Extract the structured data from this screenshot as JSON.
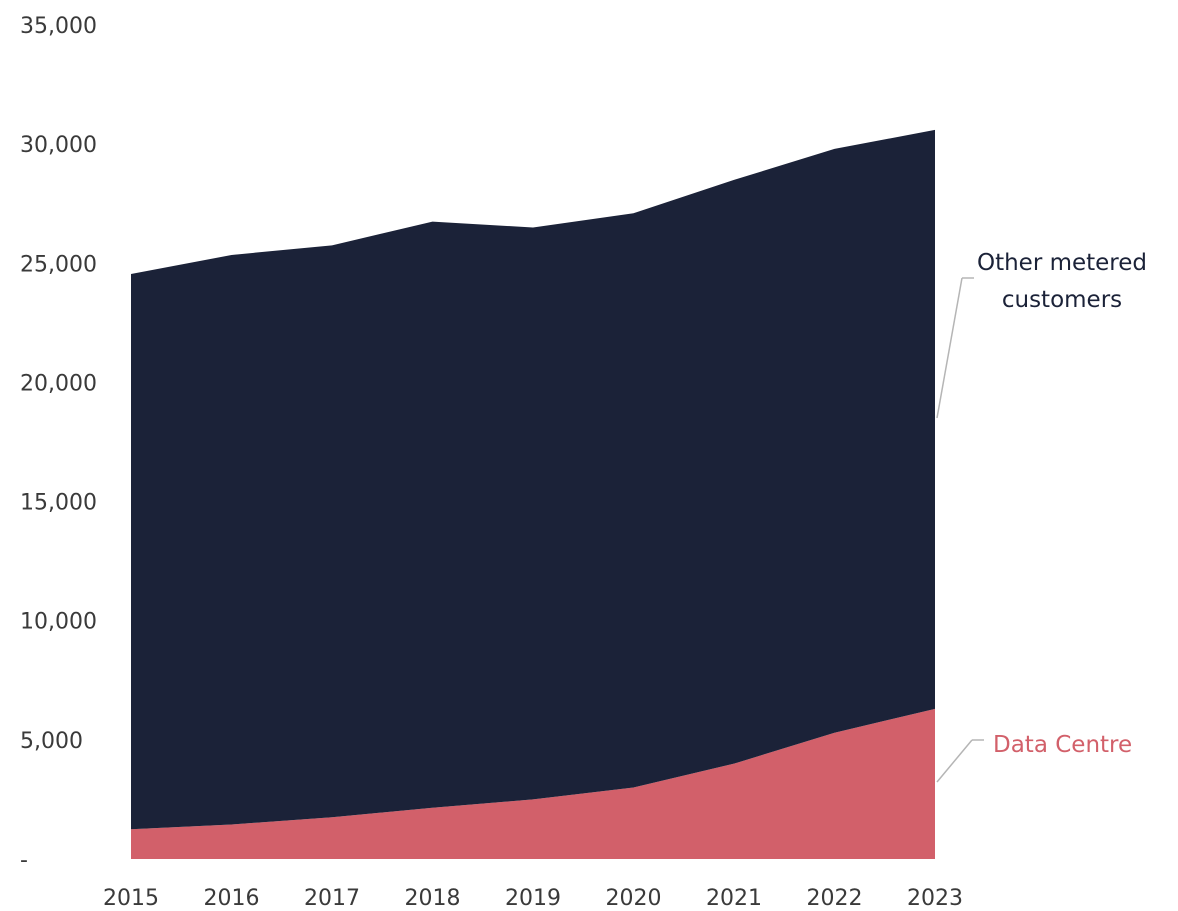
{
  "chart_data": {
    "type": "area",
    "stacked": true,
    "x": [
      2015,
      2016,
      2017,
      2018,
      2019,
      2020,
      2021,
      2022,
      2023
    ],
    "x_tick_labels": [
      "2015",
      "2016",
      "2017",
      "2018",
      "2019",
      "2020",
      "2021",
      "2022",
      "2023"
    ],
    "ylim": [
      0,
      35000
    ],
    "y_ticks": [
      0,
      5000,
      10000,
      15000,
      20000,
      25000,
      30000,
      35000
    ],
    "y_tick_labels": [
      "-",
      "5,000",
      "10,000",
      "15,000",
      "20,000",
      "25,000",
      "30,000",
      "35,000"
    ],
    "grid": false,
    "series": [
      {
        "name": "Data Centre",
        "label_lines": [
          "Data Centre"
        ],
        "color": "#d2606a",
        "values": [
          1250,
          1450,
          1750,
          2150,
          2500,
          3000,
          4000,
          5300,
          6300
        ]
      },
      {
        "name": "Other metered customers",
        "label_lines": [
          "Other metered",
          "customers"
        ],
        "color": "#1b2238",
        "values": [
          23300,
          23900,
          24000,
          24600,
          24000,
          24100,
          24500,
          24500,
          24300
        ]
      }
    ]
  }
}
